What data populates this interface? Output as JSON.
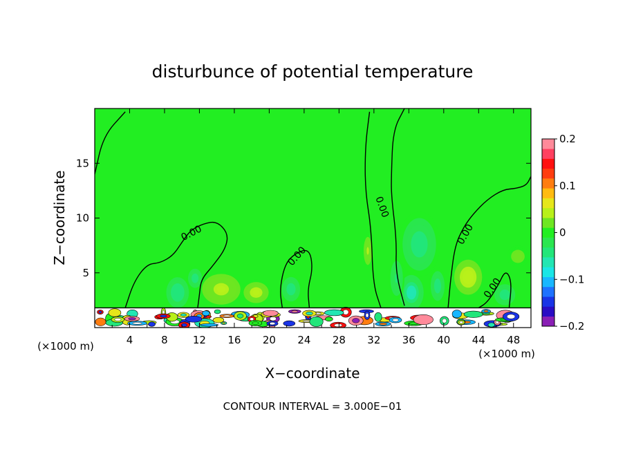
{
  "chart_data": {
    "type": "heatmap",
    "title": "disturbunce of potential temperature",
    "xlabel": "X−coordinate",
    "ylabel": "Z−coordinate",
    "x_unit": "(×1000 m)",
    "x_unit_right": "(×1000 m)",
    "xlim": [
      0,
      50
    ],
    "ylim": [
      0,
      20
    ],
    "x_ticks": [
      4,
      8,
      12,
      16,
      20,
      24,
      28,
      32,
      36,
      40,
      44,
      48
    ],
    "y_ticks": [
      5,
      10,
      15
    ],
    "contour_interval_text": "CONTOUR INTERVAL = 3.000E−01",
    "contour_label": "0.00",
    "colorbar": {
      "min": -0.2,
      "max": 0.2,
      "ticks": [
        {
          "value": 0.2,
          "label": "0.2"
        },
        {
          "value": 0.1,
          "label": "0.1"
        },
        {
          "value": 0,
          "label": "0"
        },
        {
          "value": -0.1,
          "label": "−0.1"
        },
        {
          "value": -0.2,
          "label": "−0.2"
        }
      ],
      "colors": [
        "#8a1fb5",
        "#2a0cc4",
        "#1a34e6",
        "#1f72ff",
        "#19b7ff",
        "#1ae6e6",
        "#22e6b3",
        "#22e67a",
        "#2ae650",
        "#22ee22",
        "#6ee622",
        "#b8f01a",
        "#e6e61a",
        "#ffbb10",
        "#ff7d10",
        "#ff3d10",
        "#ff1010",
        "#ff4060",
        "#ff8a9a"
      ],
      "background_value": 0
    },
    "contour_0": [
      {
        "name": "west",
        "points": [
          [
            0,
            14
          ],
          [
            1,
            17.5
          ],
          [
            3.5,
            19.7
          ]
        ]
      },
      {
        "name": "plume-1",
        "points": [
          [
            3.5,
            1.8
          ],
          [
            4.5,
            4.2
          ],
          [
            6,
            5.8
          ],
          [
            7.5,
            5.9
          ],
          [
            9,
            6.6
          ],
          [
            10,
            7.8
          ],
          [
            11,
            8.9
          ],
          [
            12.5,
            9.5
          ],
          [
            14,
            9.7
          ],
          [
            15.3,
            8.6
          ],
          [
            15,
            7.2
          ],
          [
            13.5,
            5.6
          ],
          [
            12.2,
            4.4
          ],
          [
            12,
            3
          ],
          [
            11.8,
            1.8
          ]
        ]
      },
      {
        "name": "plume-2",
        "points": [
          [
            21.5,
            1.8
          ],
          [
            21.2,
            3.5
          ],
          [
            21.8,
            5.8
          ],
          [
            23,
            6.8
          ],
          [
            24.6,
            7.2
          ],
          [
            25,
            5.4
          ],
          [
            24.4,
            3.5
          ],
          [
            24.6,
            1.8
          ]
        ]
      },
      {
        "name": "east-plume",
        "points": [
          [
            32.8,
            1.8
          ],
          [
            31.9,
            4
          ],
          [
            31.7,
            9
          ],
          [
            31,
            12.5
          ],
          [
            31,
            16.5
          ],
          [
            31.5,
            19.7
          ]
        ]
      },
      {
        "name": "east-plume-right",
        "points": [
          [
            35.5,
            20
          ],
          [
            34.2,
            18
          ],
          [
            34,
            14
          ],
          [
            34,
            12
          ],
          [
            34.6,
            8
          ],
          [
            34.5,
            5
          ],
          [
            35.5,
            2
          ]
        ]
      },
      {
        "name": "far-east",
        "points": [
          [
            40.5,
            1.8
          ],
          [
            40.8,
            4.5
          ],
          [
            41.3,
            7.5
          ],
          [
            42.3,
            9.2
          ],
          [
            43.4,
            10.4
          ],
          [
            45,
            11.7
          ],
          [
            46.8,
            12.6
          ],
          [
            48.3,
            12.7
          ],
          [
            49.5,
            13
          ],
          [
            50,
            13.8
          ]
        ]
      },
      {
        "name": "east-bump",
        "points": [
          [
            44,
            1.8
          ],
          [
            45,
            2.3
          ],
          [
            46.2,
            3.8
          ],
          [
            47.1,
            5.3
          ],
          [
            47.8,
            4.2
          ],
          [
            47.5,
            1.8
          ]
        ]
      }
    ],
    "contour_label_positions": [
      {
        "x": 11.1,
        "y": 8.6,
        "rot": -28
      },
      {
        "x": 23.2,
        "y": 6.5,
        "rot": -48
      },
      {
        "x": 32.9,
        "y": 11.0,
        "rot": 70
      },
      {
        "x": 42.5,
        "y": 8.5,
        "rot": -60
      },
      {
        "x": 45.6,
        "y": 3.6,
        "rot": -55
      }
    ],
    "anomalies": [
      {
        "x": 9.5,
        "z": 3.2,
        "sx": 1.3,
        "sz": 1.4,
        "v": -0.06
      },
      {
        "x": 11.5,
        "z": 4.5,
        "sx": 1.0,
        "sz": 1.1,
        "v": -0.05
      },
      {
        "x": 14.5,
        "z": 3.5,
        "sx": 2.2,
        "sz": 1.4,
        "v": 0.055
      },
      {
        "x": 18.5,
        "z": 3.2,
        "sx": 1.8,
        "sz": 1.2,
        "v": 0.045
      },
      {
        "x": 22.5,
        "z": 3.5,
        "sx": 1.3,
        "sz": 1.4,
        "v": -0.05
      },
      {
        "x": 31.3,
        "z": 7.0,
        "sx": 0.6,
        "sz": 1.6,
        "v": 0.04
      },
      {
        "x": 37.2,
        "z": 7.6,
        "sx": 2.4,
        "sz": 3.0,
        "v": -0.045
      },
      {
        "x": 36.3,
        "z": 3.2,
        "sx": 1.4,
        "sz": 1.6,
        "v": -0.075
      },
      {
        "x": 34.6,
        "z": 4.5,
        "sx": 0.9,
        "sz": 2.0,
        "v": -0.04
      },
      {
        "x": 39.3,
        "z": 3.8,
        "sx": 1.0,
        "sz": 1.7,
        "v": -0.05
      },
      {
        "x": 42.8,
        "z": 4.6,
        "sx": 1.6,
        "sz": 1.6,
        "v": 0.06
      },
      {
        "x": 47.0,
        "z": 3.0,
        "sx": 1.5,
        "sz": 1.2,
        "v": -0.05
      },
      {
        "x": 48.5,
        "z": 6.5,
        "sx": 1.3,
        "sz": 1.0,
        "v": 0.02
      }
    ]
  }
}
